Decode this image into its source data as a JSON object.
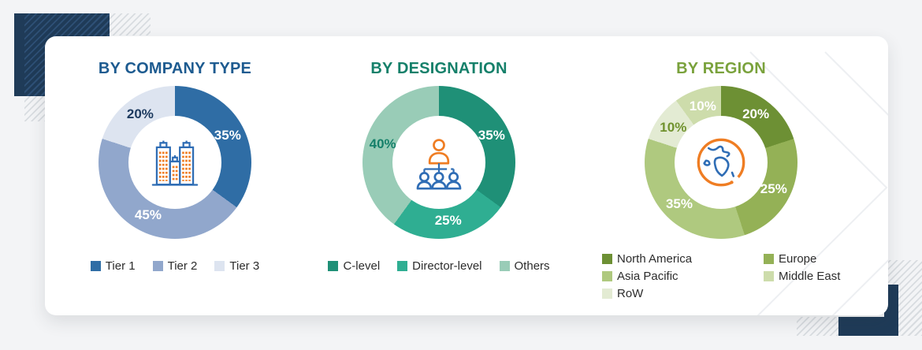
{
  "page": {
    "background_color": "#f3f4f6",
    "card_color": "#ffffff",
    "corner_accent_color": "#1f3b58"
  },
  "chart_data": [
    {
      "type": "pie",
      "donut": true,
      "title": "BY COMPANY TYPE",
      "title_color": "#1d5b90",
      "center_icon": "buildings-icon",
      "legend_position": "bottom",
      "legend_layout": "row",
      "segments": [
        {
          "label": "Tier 1",
          "value": 35,
          "color": "#2f6da5",
          "label_color": "#ffffff"
        },
        {
          "label": "Tier 2",
          "value": 45,
          "color": "#91a7cc",
          "label_color": "#ffffff"
        },
        {
          "label": "Tier 3",
          "value": 20,
          "color": "#dde4f0",
          "label_color": "#1d3a5f"
        }
      ],
      "legend": [
        {
          "label": "Tier 1",
          "color": "#2f6da5"
        },
        {
          "label": "Tier 2",
          "color": "#91a7cc"
        },
        {
          "label": "Tier 3",
          "color": "#dde4f0"
        }
      ]
    },
    {
      "type": "pie",
      "donut": true,
      "title": "BY DESIGNATION",
      "title_color": "#15806a",
      "center_icon": "org-chart-icon",
      "legend_position": "bottom",
      "legend_layout": "row",
      "segments": [
        {
          "label": "C-level",
          "value": 35,
          "color": "#1f9077",
          "label_color": "#ffffff"
        },
        {
          "label": "Director-level",
          "value": 25,
          "color": "#2fae92",
          "label_color": "#ffffff"
        },
        {
          "label": "Others",
          "value": 40,
          "color": "#99ccb7",
          "label_color": "#15806a"
        }
      ],
      "legend": [
        {
          "label": "C-level",
          "color": "#1f9077"
        },
        {
          "label": "Director-level",
          "color": "#2fae92"
        },
        {
          "label": "Others",
          "color": "#99ccb7"
        }
      ]
    },
    {
      "type": "pie",
      "donut": true,
      "title": "BY REGION",
      "title_color": "#7aa23c",
      "center_icon": "globe-icon",
      "legend_position": "bottom",
      "legend_layout": "grid",
      "segments": [
        {
          "label": "North America",
          "value": 20,
          "color": "#6d9034",
          "label_color": "#ffffff"
        },
        {
          "label": "Europe",
          "value": 25,
          "color": "#94b156",
          "label_color": "#ffffff"
        },
        {
          "label": "Asia Pacific",
          "value": 35,
          "color": "#afc97f",
          "label_color": "#ffffff"
        },
        {
          "label": "RoW",
          "value": 10,
          "color": "#e3ebd3",
          "label_color": "#70922e"
        },
        {
          "label": "Middle East",
          "value": 10,
          "color": "#cddcab",
          "label_color": "#ffffff"
        }
      ],
      "legend": [
        {
          "label": "North America",
          "color": "#6d9034"
        },
        {
          "label": "Europe",
          "color": "#94b156"
        },
        {
          "label": "Asia Pacific",
          "color": "#afc97f"
        },
        {
          "label": "Middle East",
          "color": "#cddcab"
        },
        {
          "label": "RoW",
          "color": "#e3ebd3"
        }
      ]
    }
  ]
}
